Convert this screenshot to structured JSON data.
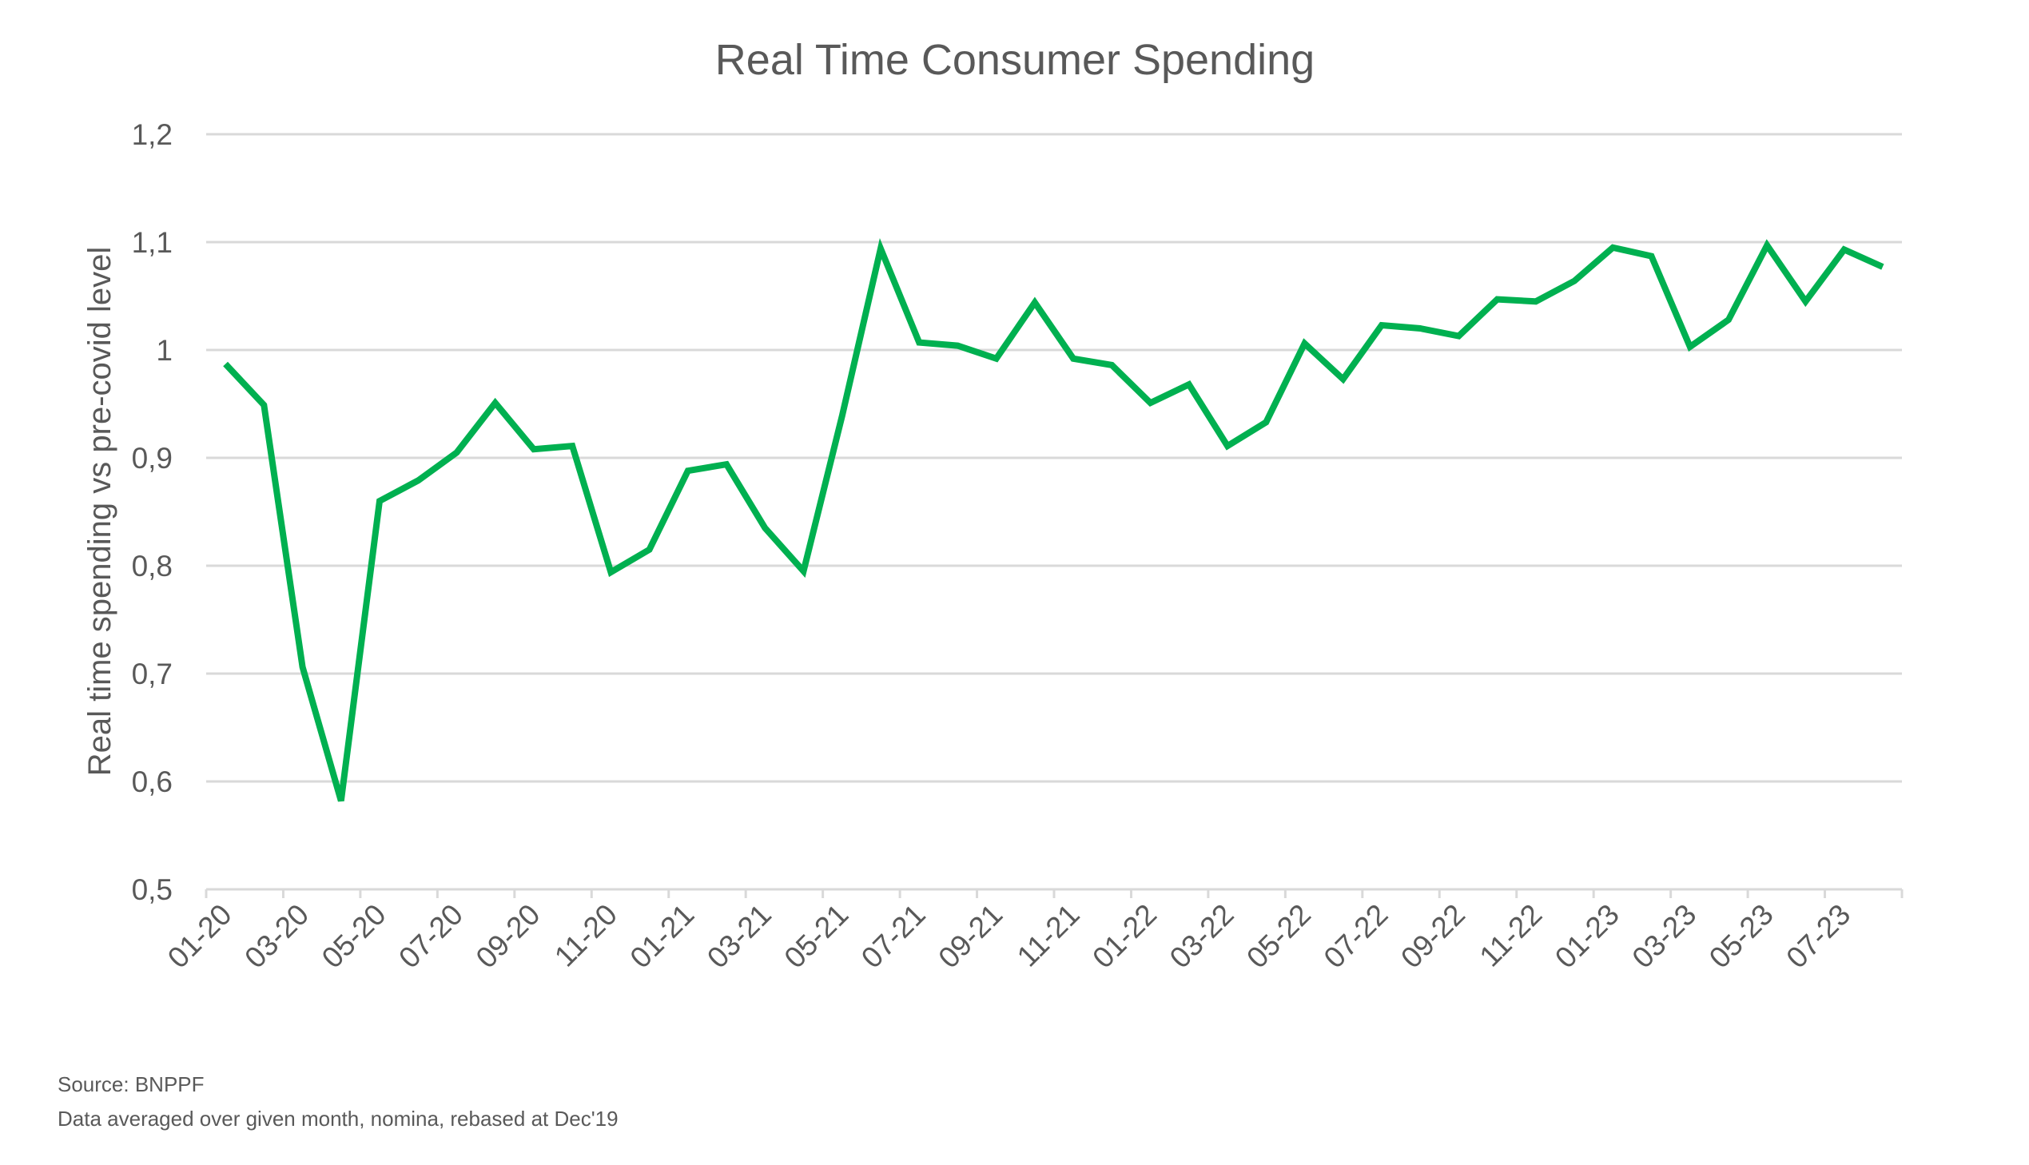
{
  "chart_data": {
    "type": "line",
    "title": "Real Time Consumer Spending",
    "xlabel": "",
    "ylabel": "Real time spending vs pre-covid level",
    "ylim": [
      0.5,
      1.2
    ],
    "y_ticks": [
      "0,5",
      "0,6",
      "0,7",
      "0,8",
      "0,9",
      "1",
      "1,1",
      "1,2"
    ],
    "y_tick_values": [
      0.5,
      0.6,
      0.7,
      0.8,
      0.9,
      1.0,
      1.1,
      1.2
    ],
    "x": [
      "01-20",
      "02-20",
      "03-20",
      "04-20",
      "05-20",
      "06-20",
      "07-20",
      "08-20",
      "09-20",
      "10-20",
      "11-20",
      "12-20",
      "01-21",
      "02-21",
      "03-21",
      "04-21",
      "05-21",
      "06-21",
      "07-21",
      "08-21",
      "09-21",
      "10-21",
      "11-21",
      "12-21",
      "01-22",
      "02-22",
      "03-22",
      "04-22",
      "05-22",
      "06-22",
      "07-22",
      "08-22",
      "09-22",
      "10-22",
      "11-22",
      "12-22",
      "01-23",
      "02-23",
      "03-23",
      "04-23",
      "05-23",
      "06-23",
      "07-23",
      "08-23"
    ],
    "x_tick_labels": [
      "01-20",
      "03-20",
      "05-20",
      "07-20",
      "09-20",
      "11-20",
      "01-21",
      "03-21",
      "05-21",
      "07-21",
      "09-21",
      "11-21",
      "01-22",
      "03-22",
      "05-22",
      "07-22",
      "09-22",
      "11-22",
      "01-23",
      "03-23",
      "05-23",
      "07-23"
    ],
    "series": [
      {
        "name": "",
        "values": [
          0.987,
          0.949,
          0.706,
          0.582,
          0.86,
          0.879,
          0.905,
          0.951,
          0.908,
          0.911,
          0.794,
          0.815,
          0.888,
          0.894,
          0.835,
          0.795,
          0.939,
          1.094,
          1.007,
          1.004,
          0.992,
          1.044,
          0.992,
          0.986,
          0.951,
          0.968,
          0.911,
          0.933,
          1.006,
          0.973,
          1.023,
          1.02,
          1.013,
          1.047,
          1.045,
          1.064,
          1.095,
          1.087,
          1.003,
          1.028,
          1.097,
          1.045,
          1.093,
          1.077
        ]
      }
    ],
    "colors": {
      "line": "#00B050",
      "grid": "#D9D9D9",
      "text": "#595959"
    },
    "grid": true,
    "legend": "none"
  },
  "footer": {
    "source": "Source: BNPPF",
    "note": "Data averaged over given month, nomina, rebased at Dec'19"
  }
}
